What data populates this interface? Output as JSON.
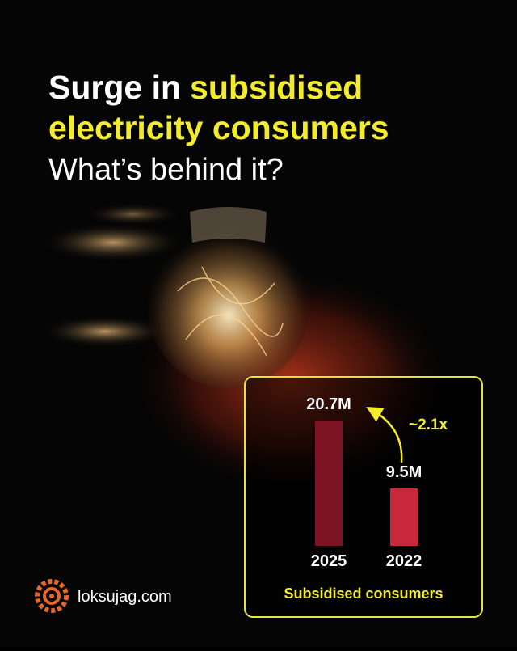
{
  "header": {
    "title": [
      "Surge in",
      "subsidised",
      "electricity consumers"
    ],
    "subtitle": "What’s behind it?"
  },
  "brand": "loksujag.com",
  "chart_data": {
    "type": "bar",
    "categories": [
      "2025",
      "2022"
    ],
    "values": [
      20700000,
      9500000
    ],
    "value_labels": [
      "20.7M",
      "9.5M"
    ],
    "colors": [
      "#7d1424",
      "#c8283a"
    ],
    "annotation": "~2.1x",
    "x_label": "Subsidised consumers"
  }
}
